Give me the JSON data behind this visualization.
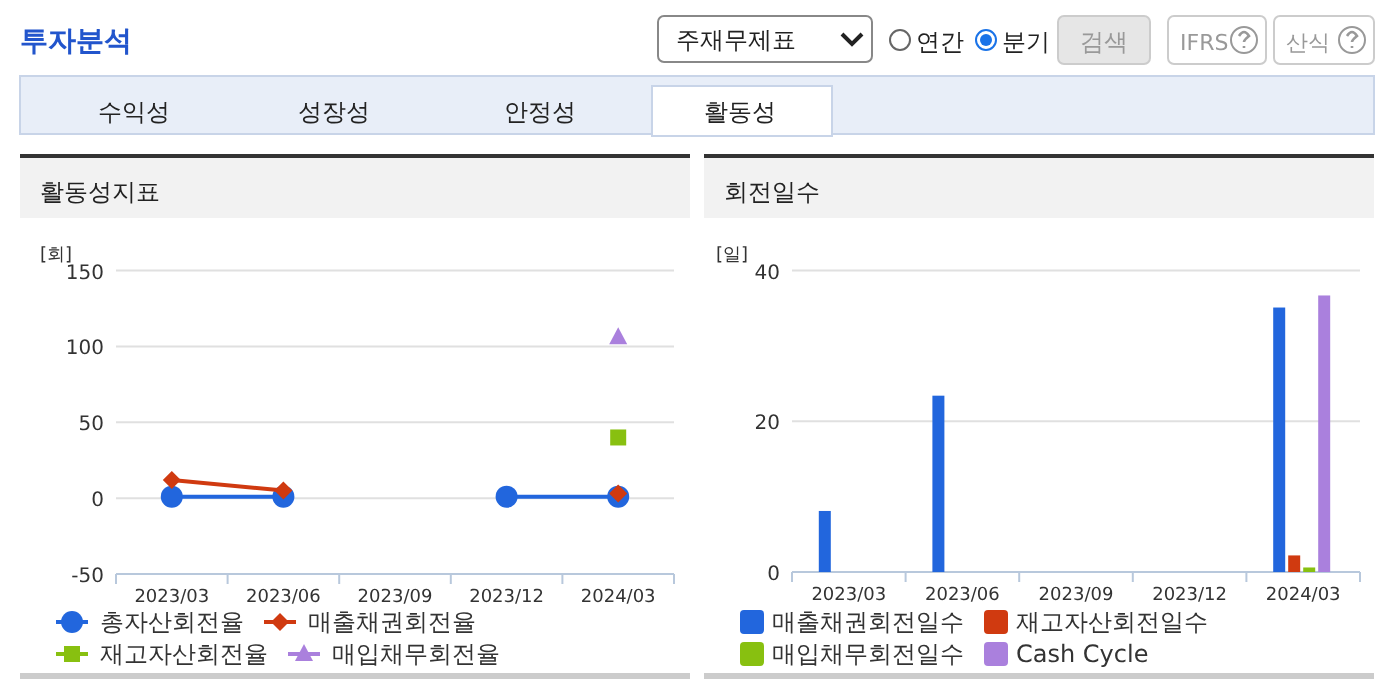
{
  "chart_data": [
    {
      "type": "other",
      "title": "투자분석",
      "annotations": [
        "주재무제표",
        "연간",
        "분기",
        "검색",
        "IFRS",
        "산식",
        "수익성",
        "성장성",
        "안정성",
        "활동성"
      ]
    },
    {
      "type": "line",
      "title": "활동성지표",
      "ylabel": "[회]",
      "categories": [
        "2023/03",
        "2023/06",
        "2023/09",
        "2023/12",
        "2024/03"
      ],
      "ylim": [
        -50,
        150
      ],
      "yticks": [
        -50,
        0,
        50,
        100,
        150
      ],
      "grid": "y",
      "legend": "bottom",
      "series": [
        {
          "name": "총자산회전율",
          "color": "#2266dd",
          "marker": "circle",
          "values": [
            1,
            1,
            null,
            1,
            1
          ]
        },
        {
          "name": "매출채권회전율",
          "color": "#d03a10",
          "marker": "diamond",
          "values": [
            12,
            5,
            null,
            null,
            3
          ]
        },
        {
          "name": "재고자산회전율",
          "color": "#88c010",
          "marker": "square",
          "values": [
            null,
            null,
            null,
            null,
            40
          ]
        },
        {
          "name": "매입채무회전율",
          "color": "#aa80dd",
          "marker": "triangle",
          "values": [
            null,
            null,
            null,
            null,
            106
          ]
        }
      ]
    },
    {
      "type": "bar",
      "title": "회전일수",
      "ylabel": "[일]",
      "categories": [
        "2023/03",
        "2023/06",
        "2023/09",
        "2023/12",
        "2024/03"
      ],
      "ylim": [
        0,
        40
      ],
      "yticks": [
        0,
        20,
        40
      ],
      "grid": "y",
      "legend": "bottom",
      "series": [
        {
          "name": "매출채권회전일수",
          "color": "#2266dd",
          "values": [
            8.1,
            23.4,
            null,
            null,
            35.1
          ]
        },
        {
          "name": "재고자산회전일수",
          "color": "#d03a10",
          "values": [
            null,
            null,
            null,
            null,
            2.2
          ]
        },
        {
          "name": "매입채무회전일수",
          "color": "#88c010",
          "values": [
            null,
            null,
            null,
            null,
            0.6
          ]
        },
        {
          "name": "Cash Cycle",
          "color": "#aa80dd",
          "values": [
            null,
            null,
            null,
            null,
            36.7
          ]
        }
      ]
    }
  ]
}
